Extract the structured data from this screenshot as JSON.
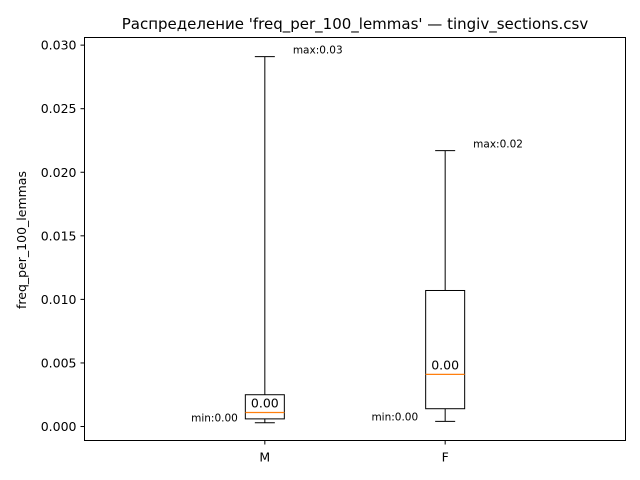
{
  "chart_data": {
    "type": "box",
    "title": "Распределение 'freq_per_100_lemmas' — tingiv_sections.csv",
    "xlabel": "",
    "ylabel": "freq_per_100_lemmas",
    "ylim": [
      -0.0011,
      0.0306
    ],
    "yticks": [
      0.0,
      0.005,
      0.01,
      0.015,
      0.02,
      0.025,
      0.03
    ],
    "ytick_labels": [
      "0.000",
      "0.005",
      "0.010",
      "0.015",
      "0.020",
      "0.025",
      "0.030"
    ],
    "grid": false,
    "categories": [
      "M",
      "F"
    ],
    "boxes": [
      {
        "category": "M",
        "whisker_low": 0.0003,
        "q1": 0.0006,
        "median": 0.0011,
        "q3": 0.0025,
        "whisker_high": 0.0291,
        "median_label": "0.00",
        "min_label": "min:0.00",
        "max_label": "max:0.03"
      },
      {
        "category": "F",
        "whisker_low": 0.0004,
        "q1": 0.0014,
        "median": 0.0041,
        "q3": 0.0107,
        "whisker_high": 0.0217,
        "median_label": "0.00",
        "min_label": "min:0.00",
        "max_label": "max:0.02"
      }
    ],
    "colors": {
      "box": "#000000",
      "median": "#ff7f0e",
      "axes": "#000000"
    }
  }
}
